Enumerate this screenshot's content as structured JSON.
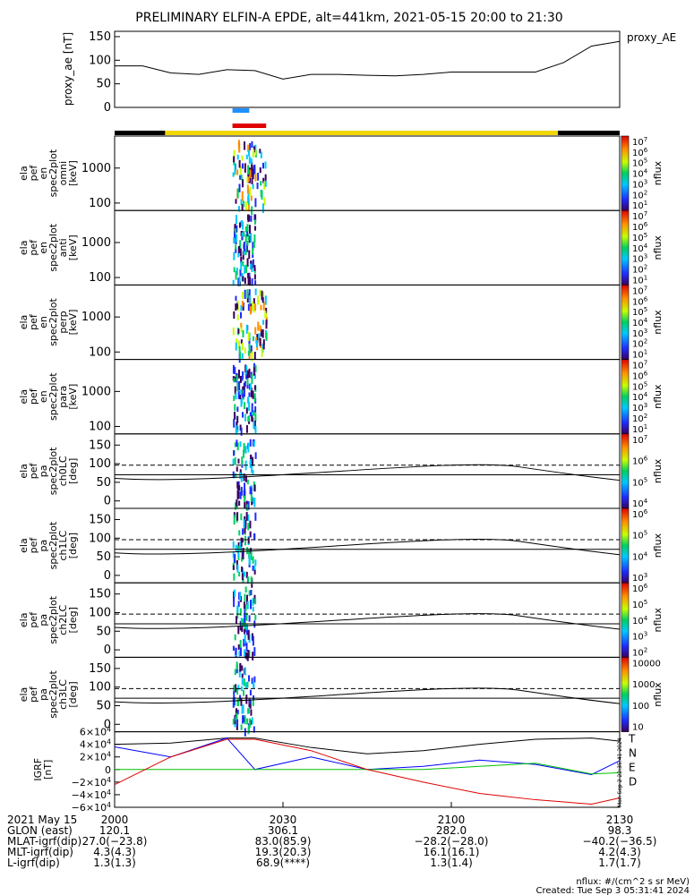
{
  "title": "PRELIMINARY ELFIN-A EPDE, alt=441km, 2021-05-15 20:00 to 21:30",
  "chart_data": [
    {
      "type": "line",
      "ylabel": "proxy_ae [nT]",
      "legend": "proxy_AE",
      "yticks": [
        "150",
        "100",
        "50",
        "0"
      ],
      "ylim": [
        0,
        150
      ],
      "x_min": [
        0,
        5,
        10,
        15,
        20,
        25,
        30,
        35,
        40,
        45,
        50,
        55,
        60,
        65,
        70,
        75,
        80,
        85,
        90
      ],
      "values": [
        88,
        88,
        73,
        70,
        80,
        78,
        60,
        70,
        70,
        68,
        67,
        70,
        75,
        75,
        75,
        75,
        95,
        130,
        140
      ]
    },
    {
      "type": "heatmap",
      "ylabel": "ela pef en spec2plot omni [keV]",
      "yticks": [
        "1000",
        "100"
      ],
      "colorbar_label": "nflux",
      "colorbar_ticks": [
        "10^7",
        "10^6",
        "10^5",
        "10^4",
        "10^3",
        "10^2",
        "10^1"
      ]
    },
    {
      "type": "heatmap",
      "ylabel": "ela pef en spec2plot anti [keV]",
      "yticks": [
        "1000",
        "100"
      ],
      "colorbar_label": "nflux",
      "colorbar_ticks": [
        "10^7",
        "10^6",
        "10^5",
        "10^4",
        "10^3",
        "10^2",
        "10^1"
      ]
    },
    {
      "type": "heatmap",
      "ylabel": "ela pef en spec2plot perp [keV]",
      "yticks": [
        "1000",
        "100"
      ],
      "colorbar_label": "nflux",
      "colorbar_ticks": [
        "10^7",
        "10^6",
        "10^5",
        "10^4",
        "10^3",
        "10^2",
        "10^1"
      ]
    },
    {
      "type": "heatmap",
      "ylabel": "ela pef en spec2plot para [keV]",
      "yticks": [
        "1000",
        "100"
      ],
      "colorbar_label": "nflux",
      "colorbar_ticks": [
        "10^7",
        "10^6",
        "10^5",
        "10^4",
        "10^3",
        "10^2",
        "10^1"
      ]
    },
    {
      "type": "heatmap",
      "ylabel": "ela pef pa spec2plot ch0LC [deg]",
      "yticks": [
        "150",
        "100",
        "50",
        "0"
      ],
      "colorbar_label": "nflux",
      "colorbar_ticks": [
        "10^7",
        "10^6",
        "10^5",
        "10^4"
      ]
    },
    {
      "type": "heatmap",
      "ylabel": "ela pef pa spec2plot ch1LC [deg]",
      "yticks": [
        "150",
        "100",
        "50",
        "0"
      ],
      "colorbar_label": "nflux",
      "colorbar_ticks": [
        "10^6",
        "10^5",
        "10^4",
        "10^3"
      ]
    },
    {
      "type": "heatmap",
      "ylabel": "ela pef pa spec2plot ch2LC [deg]",
      "yticks": [
        "150",
        "100",
        "50",
        "0"
      ],
      "colorbar_label": "nflux",
      "colorbar_ticks": [
        "10^6",
        "10^5",
        "10^4",
        "10^3",
        "10^2"
      ]
    },
    {
      "type": "heatmap",
      "ylabel": "ela pef pa spec2plot ch3LC [deg]",
      "yticks": [
        "150",
        "100",
        "50",
        "0"
      ],
      "colorbar_label": "nflux",
      "colorbar_ticks": [
        "10000",
        "1000",
        "100",
        "10"
      ]
    },
    {
      "type": "line",
      "ylabel": "IGRF [nT]",
      "yticks": [
        "6×10^4",
        "4×10^4",
        "2×10^4",
        "0",
        "−2×10^4",
        "−4×10^4",
        "−6×10^4"
      ],
      "ylim": [
        -60000,
        60000
      ],
      "x_min": [
        0,
        10,
        20,
        25,
        35,
        45,
        55,
        65,
        75,
        85,
        90
      ],
      "series": [
        {
          "name": "T",
          "color": "#000000",
          "values": [
            40000,
            42000,
            50000,
            50000,
            35000,
            25000,
            30000,
            40000,
            48000,
            50000,
            45000
          ]
        },
        {
          "name": "N",
          "color": "#0000ff",
          "values": [
            36000,
            20000,
            50000,
            0,
            20000,
            0,
            5000,
            15000,
            8000,
            -8000,
            14000
          ]
        },
        {
          "name": "E",
          "color": "#00c000",
          "values": [
            0,
            0,
            0,
            0,
            0,
            0,
            0,
            5000,
            10000,
            -7000,
            -5000
          ]
        },
        {
          "name": "D",
          "color": "#e00000",
          "values": [
            -24000,
            20000,
            48000,
            48000,
            30000,
            0,
            -20000,
            -38000,
            -48000,
            -55000,
            -45000
          ]
        }
      ]
    }
  ],
  "xaxis": {
    "ticks": [
      "2000",
      "2030",
      "2100",
      "2130"
    ]
  },
  "footer": {
    "rows": [
      [
        "2021 May 15",
        "2000",
        "2030",
        "2100",
        "2130"
      ],
      [
        "GLON (east)",
        "120.1",
        "306.1",
        "282.0",
        "98.3"
      ],
      [
        "MLAT-igrf(dip)",
        "27.0(−23.8)",
        "83.0(85.9)",
        "−28.2(−28.0)",
        "−40.2(−36.5)"
      ],
      [
        "MLT-igrf(dip)",
        "4.3(4.3)",
        "19.3(20.3)",
        "16.1(16.1)",
        "4.2(4.3)"
      ],
      [
        "L-igrf(dip)",
        "1.3(1.3)",
        "68.9(****)",
        "1.3(1.4)",
        "1.7(1.7)"
      ]
    ],
    "units": "nflux: #/(cm^2 s sr MeV)",
    "created": "Created: Tue Sep  3 05:31:41 2024"
  },
  "side_label": "Mon Sep  2 22:35:41 2024",
  "state_bar": {
    "segments": [
      {
        "from": 0,
        "to": 9,
        "color": "#000000"
      },
      {
        "from": 9,
        "to": 79,
        "color": "#f2d600"
      },
      {
        "from": 79,
        "to": 90,
        "color": "#000000"
      }
    ]
  },
  "event_bars": {
    "blue": {
      "from": 21,
      "to": 24,
      "color": "#1e90ff"
    },
    "red": {
      "from": 21,
      "to": 27,
      "color": "#e00000"
    }
  }
}
